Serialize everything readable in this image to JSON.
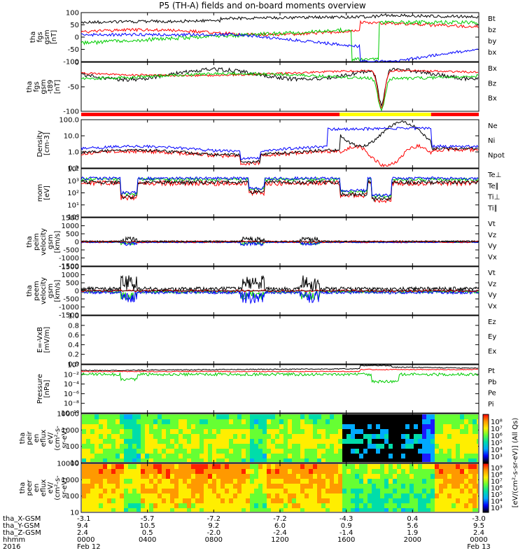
{
  "title": "P5 (TH-A) fields and on-board moments overview",
  "colors": {
    "black": "#000000",
    "red": "#ff0000",
    "green": "#00cc00",
    "blue": "#0000ff",
    "yellow": "#ffff00"
  },
  "chart_data": [
    {
      "type": "line",
      "panel": "fgs_gsm",
      "ylabel": [
        "tha",
        "fgs",
        "gsm",
        "[nT]"
      ],
      "yticks": [
        "100",
        "50",
        "0",
        "-50",
        "-100"
      ],
      "ylim": [
        -100,
        100
      ],
      "series": [
        {
          "name": "Bt",
          "color": "#000000"
        },
        {
          "name": "bz",
          "color": "#ff0000"
        },
        {
          "name": "by",
          "color": "#00cc00"
        },
        {
          "name": "bx",
          "color": "#0000ff"
        }
      ]
    },
    {
      "type": "line",
      "panel": "fgs_gsm_minus_t89",
      "ylabel": [
        "tha",
        "fgs",
        "gsm",
        "-t89",
        "[nT]"
      ],
      "yticks": [
        "0",
        "-50",
        "-100"
      ],
      "ylim": [
        -130,
        30
      ],
      "series": [
        {
          "name": "Bx",
          "color": "#000000"
        },
        {
          "name": "Bz",
          "color": "#ff0000"
        },
        {
          "name": "Bx",
          "color": "#00cc00"
        }
      ]
    },
    {
      "type": "bar",
      "panel": "region_bar",
      "segments": [
        {
          "from": 0.0,
          "to": 0.65,
          "color": "#ff0000"
        },
        {
          "from": 0.65,
          "to": 0.88,
          "color": "#ffff00"
        },
        {
          "from": 0.88,
          "to": 1.0,
          "color": "#ff0000"
        }
      ]
    },
    {
      "type": "line",
      "panel": "density",
      "ylabel": [
        "Density",
        "[cm-3]"
      ],
      "yticks": [
        "100.0",
        "10.0",
        "1.0",
        "0.1"
      ],
      "ylim": [
        0.1,
        100
      ],
      "log": true,
      "series": [
        {
          "name": "Ne",
          "color": "#ff0000"
        },
        {
          "name": "Ni",
          "color": "#000000"
        },
        {
          "name": "Npot",
          "color": "#0000ff"
        }
      ]
    },
    {
      "type": "line",
      "panel": "temperature",
      "ylabel": [
        "mom",
        "[eV]"
      ],
      "yticks": [
        "10⁴",
        "10³",
        "10²",
        "10¹",
        "10⁰"
      ],
      "ylim": [
        1,
        10000
      ],
      "log": true,
      "series": [
        {
          "name": "Te⊥",
          "color": "#ff0000"
        },
        {
          "name": "Te∥",
          "color": "#000000"
        },
        {
          "name": "Ti⊥",
          "color": "#ff0000"
        },
        {
          "name": "Ti∥",
          "color": "#00cc00"
        }
      ]
    },
    {
      "type": "line",
      "panel": "peim_velocity",
      "ylabel": [
        "tha",
        "peim",
        "velocity",
        "gsm",
        "[km/s]"
      ],
      "yticks": [
        "1500",
        "1000",
        "500",
        "0",
        "-500",
        "-1000",
        "-1500"
      ],
      "ylim": [
        -1500,
        1500
      ],
      "series": [
        {
          "name": "Vt",
          "color": "#000000"
        },
        {
          "name": "Vz",
          "color": "#ff0000"
        },
        {
          "name": "Vy",
          "color": "#00cc00"
        },
        {
          "name": "Vx",
          "color": "#0000ff"
        }
      ]
    },
    {
      "type": "line",
      "panel": "peem_velocity",
      "ylabel": [
        "tha",
        "peem",
        "velocity",
        "gsm",
        "[km/s]"
      ],
      "yticks": [
        "1500",
        "1000",
        "500",
        "0",
        "-500",
        "-1000",
        "-1500"
      ],
      "ylim": [
        -1500,
        1500
      ],
      "series": [
        {
          "name": "Vt",
          "color": "#000000"
        },
        {
          "name": "Vz",
          "color": "#ff0000"
        },
        {
          "name": "Vy",
          "color": "#00cc00"
        },
        {
          "name": "Vx",
          "color": "#0000ff"
        }
      ]
    },
    {
      "type": "line",
      "panel": "e_field",
      "ylabel": [
        "E=-VxB",
        "[mV/m]"
      ],
      "yticks": [
        "1.0",
        "0.8",
        "0.6",
        "0.4",
        "0.2",
        "0.0"
      ],
      "ylim": [
        0,
        1
      ],
      "series": [
        {
          "name": "Ez",
          "color": "#ff0000"
        },
        {
          "name": "Ey",
          "color": "#00cc00"
        },
        {
          "name": "Ex",
          "color": "#0000ff"
        }
      ]
    },
    {
      "type": "line",
      "panel": "pressure",
      "ylabel": [
        "Pressure",
        "[nPa]"
      ],
      "yticks": [
        "10⁰",
        "10⁻²",
        "10⁻⁴",
        "10⁻⁶",
        "10⁻⁸",
        "10⁻¹⁰"
      ],
      "ylim": [
        1e-10,
        1
      ],
      "log": true,
      "series": [
        {
          "name": "Pt",
          "color": "#000000"
        },
        {
          "name": "Pb",
          "color": "#ff0000"
        },
        {
          "name": "Pe",
          "color": "#00cc00"
        },
        {
          "name": "Pi",
          "color": "#0000ff"
        }
      ]
    },
    {
      "type": "heatmap",
      "panel": "peir_spectrogram",
      "ylabel": [
        "tha",
        "peir",
        "en",
        "eflux",
        "eV/",
        "(cm²-s-",
        "sr-eV)"
      ],
      "yticks": [
        "10000",
        "1000",
        "100",
        "10"
      ],
      "ylim": [
        10,
        20000
      ],
      "log": true
    },
    {
      "type": "heatmap",
      "panel": "peer_spectrogram",
      "ylabel": [
        "tha",
        "peer",
        "en",
        "eflux",
        "eV/",
        "(cm²-s-",
        "sr-eV)"
      ],
      "yticks": [
        "10000",
        "1000",
        "100",
        "10"
      ],
      "ylim": [
        10,
        20000
      ],
      "log": true
    }
  ],
  "colorbar": {
    "label": "[eV/(cm²-s-sr-eV)] (All Qs)",
    "upper_ticks": [
      "10⁸",
      "10⁷",
      "10⁶",
      "10⁵",
      "10⁴",
      "10³"
    ],
    "lower_ticks": [
      "10⁹",
      "10⁸",
      "10⁷",
      "10⁶",
      "10⁵",
      "10⁴",
      "10³"
    ]
  },
  "xaxis": {
    "row_labels": [
      "tha_X-GSM",
      "tha_Y-GSM",
      "tha_Z-GSM",
      "hhmm",
      "2016"
    ],
    "ticks": [
      {
        "x": "-3.1",
        "y": "9.4",
        "z": "2.4",
        "t": "0000",
        "d": "Feb 12"
      },
      {
        "x": "-5.7",
        "y": "10.5",
        "z": "0.5",
        "t": "0400",
        "d": ""
      },
      {
        "x": "-7.2",
        "y": "9.2",
        "z": "-2.0",
        "t": "0800",
        "d": ""
      },
      {
        "x": "-7.2",
        "y": "6.0",
        "z": "-2.4",
        "t": "1200",
        "d": ""
      },
      {
        "x": "-4.3",
        "y": "0.9",
        "z": "-1.4",
        "t": "1600",
        "d": ""
      },
      {
        "x": "0.4",
        "y": "5.6",
        "z": "1.9",
        "t": "2000",
        "d": ""
      },
      {
        "x": "-3.0",
        "y": "9.5",
        "z": "2.4",
        "t": "0000",
        "d": "Feb 13"
      }
    ]
  }
}
